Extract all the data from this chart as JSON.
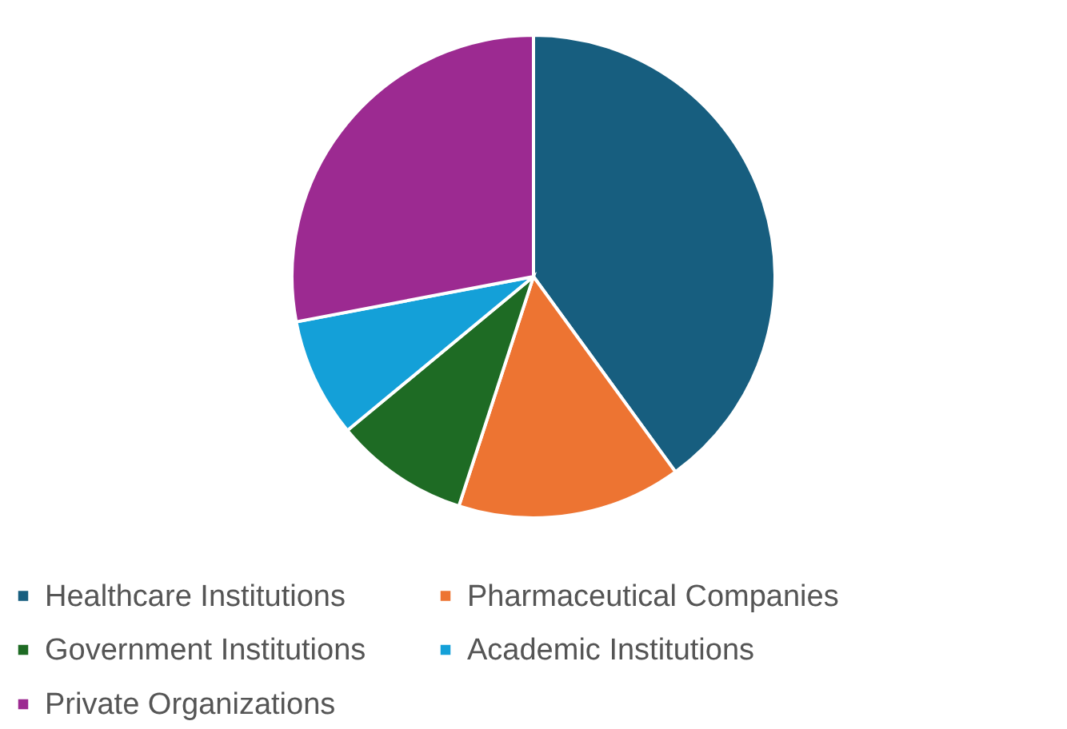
{
  "chart_data": {
    "type": "pie",
    "categories": [
      "Healthcare Institutions",
      "Pharmaceutical Companies",
      "Government Institutions",
      "Academic Institutions",
      "Private Organizations"
    ],
    "values": [
      40,
      15,
      9,
      8,
      28
    ],
    "colors": [
      "#175e7f",
      "#ed7432",
      "#1e6b24",
      "#14a0d8",
      "#9c2a91"
    ],
    "legend": "bottom"
  }
}
